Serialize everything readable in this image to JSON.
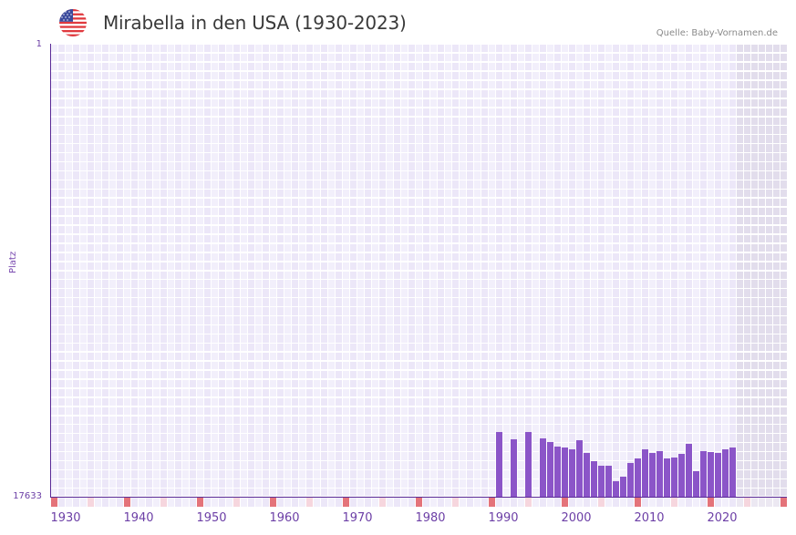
{
  "header": {
    "title": "Mirabella in den USA (1930-2023)",
    "source": "Quelle: Baby-Vornamen.de",
    "flag_icon": "us-flag-icon"
  },
  "colors": {
    "bar": "#8b55c8",
    "axis": "#5a2a96",
    "label": "#6c3fa6",
    "decade_marker": "#e4737a",
    "half_decade_marker": "#f6d6de",
    "grid_light": "#f2effb",
    "grid_alt": "#ece7f8",
    "future_shade": "#e2ddec"
  },
  "chart_data": {
    "type": "bar",
    "title": "Mirabella in den USA (1930-2023)",
    "xlabel": "",
    "ylabel": "Platz",
    "y_axis_inverted": true,
    "ylim": [
      1,
      17633
    ],
    "y_ticks": [
      "1",
      "17633"
    ],
    "x_range": [
      1930,
      2030
    ],
    "x_ticks": [
      "1930",
      "1940",
      "1950",
      "1960",
      "1970",
      "1980",
      "1990",
      "2000",
      "2010",
      "2020"
    ],
    "future_shaded_from": 2024,
    "grid": true,
    "legend": null,
    "categories": [
      1991,
      1993,
      1995,
      1997,
      1998,
      1999,
      2000,
      2001,
      2002,
      2003,
      2004,
      2005,
      2006,
      2007,
      2008,
      2009,
      2010,
      2011,
      2012,
      2013,
      2014,
      2015,
      2016,
      2017,
      2018,
      2019,
      2020,
      2021,
      2022,
      2023
    ],
    "values": [
      15114,
      15398,
      15114,
      15362,
      15504,
      15681,
      15717,
      15788,
      15433,
      15930,
      16249,
      16427,
      16427,
      17030,
      16853,
      16320,
      16143,
      15788,
      15930,
      15859,
      16143,
      16107,
      15965,
      15575,
      16640,
      15859,
      15894,
      15930,
      15788,
      15717
    ]
  },
  "axis": {
    "y_top_label": "1",
    "y_bottom_label": "17633",
    "y_title": "Platz",
    "x_labels": [
      {
        "year": 1930,
        "label": "1930"
      },
      {
        "year": 1940,
        "label": "1940"
      },
      {
        "year": 1950,
        "label": "1950"
      },
      {
        "year": 1960,
        "label": "1960"
      },
      {
        "year": 1970,
        "label": "1970"
      },
      {
        "year": 1980,
        "label": "1980"
      },
      {
        "year": 1990,
        "label": "1990"
      },
      {
        "year": 2000,
        "label": "2000"
      },
      {
        "year": 2010,
        "label": "2010"
      },
      {
        "year": 2020,
        "label": "2020"
      }
    ]
  }
}
